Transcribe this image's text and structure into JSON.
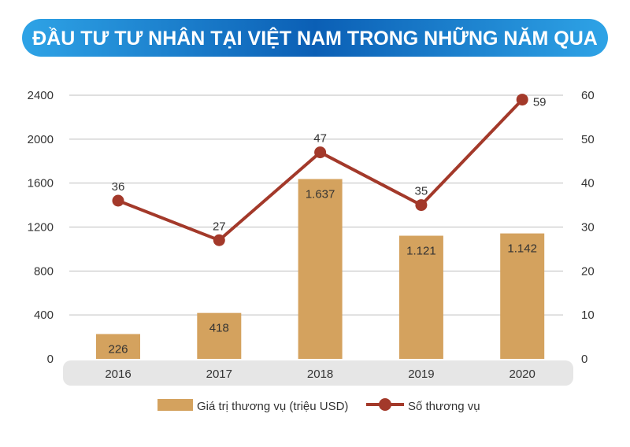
{
  "chart_data": {
    "type": "bar",
    "title": "ĐẦU TƯ TƯ NHÂN TẠI VIỆT NAM TRONG NHỮNG NĂM QUA",
    "categories": [
      "2016",
      "2017",
      "2018",
      "2019",
      "2020"
    ],
    "series": [
      {
        "name": "Giá trị thương vụ (triệu USD)",
        "type": "bar",
        "axis": "left",
        "values": [
          226,
          418,
          1637,
          1121,
          1142
        ],
        "labels": [
          "226",
          "418",
          "1.637",
          "1.121",
          "1.142"
        ],
        "color": "#D4A25E"
      },
      {
        "name": "Số thương vụ",
        "type": "line",
        "axis": "right",
        "values": [
          36,
          27,
          47,
          35,
          59
        ],
        "labels": [
          "36",
          "27",
          "47",
          "35",
          "59"
        ],
        "color": "#A3392A"
      }
    ],
    "y_left": {
      "ylim": [
        0,
        2400
      ],
      "ticks": [
        "0",
        "400",
        "800",
        "1200",
        "1600",
        "2000",
        "2400"
      ]
    },
    "y_right": {
      "ylim": [
        0,
        60
      ],
      "ticks": [
        "0",
        "10",
        "20",
        "30",
        "40",
        "50",
        "60"
      ]
    },
    "grid": true,
    "legend_position": "bottom",
    "colors": {
      "title_bg": "#1277C8",
      "grid": "#BFBFBF",
      "axis_band": "#E6E6E6"
    }
  }
}
